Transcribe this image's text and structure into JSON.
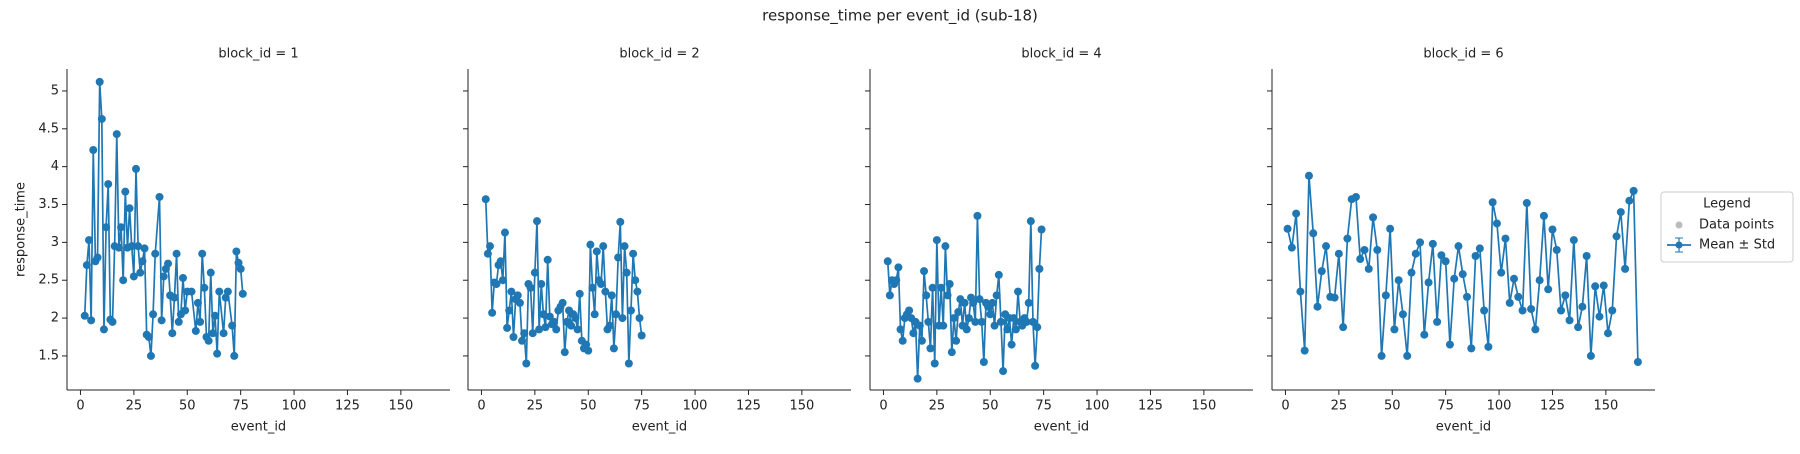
{
  "title": "response_time per event_id (sub-18)",
  "legend": {
    "title": "Legend",
    "entries": [
      "Data points",
      "Mean ± Std"
    ],
    "colors": [
      "#bbbbbb",
      "#1f77b4"
    ]
  },
  "chart_data": [
    {
      "type": "line",
      "title": "block_id = 1",
      "xlabel": "event_id",
      "ylabel": "response_time",
      "xlim": [
        -6.3,
        173
      ],
      "ylim": [
        1.05,
        5.29
      ],
      "xticks": [
        0,
        25,
        50,
        75,
        100,
        125,
        150
      ],
      "yticks": [
        1.5,
        2.0,
        2.5,
        3.0,
        3.5,
        4.0,
        4.5,
        5.0
      ],
      "series": [
        {
          "color": "#1f77b4",
          "x": [
            2,
            3,
            4,
            5,
            6,
            7,
            8,
            9,
            10,
            11,
            12,
            13,
            14,
            15,
            16,
            17,
            18,
            19,
            20,
            21,
            22,
            23,
            24,
            25,
            26,
            27,
            28,
            29,
            30,
            31,
            32,
            33,
            34,
            35,
            37,
            38,
            39,
            40,
            41,
            42,
            43,
            44,
            45,
            46,
            47,
            48,
            49,
            50,
            52,
            54,
            55,
            56,
            57,
            58,
            59,
            60,
            61,
            62,
            63,
            64,
            65,
            67,
            68,
            69,
            71,
            72,
            73,
            74,
            75,
            76
          ],
          "values": [
            2.03,
            2.7,
            3.03,
            1.97,
            4.22,
            2.75,
            2.8,
            5.12,
            4.63,
            1.85,
            3.2,
            3.77,
            1.98,
            1.95,
            2.95,
            4.43,
            2.93,
            3.2,
            2.5,
            3.67,
            2.93,
            3.45,
            2.95,
            2.55,
            3.97,
            2.95,
            2.6,
            2.75,
            2.92,
            1.78,
            1.75,
            1.5,
            2.05,
            2.85,
            3.6,
            1.97,
            2.55,
            2.65,
            2.72,
            2.3,
            1.8,
            2.27,
            2.85,
            1.95,
            2.05,
            2.53,
            2.1,
            2.35,
            2.35,
            1.83,
            2.2,
            1.95,
            2.85,
            2.4,
            1.75,
            1.7,
            2.6,
            1.8,
            2.03,
            1.53,
            2.35,
            1.8,
            2.27,
            2.35,
            1.9,
            1.5,
            2.88,
            2.73,
            2.65,
            2.32
          ]
        }
      ]
    },
    {
      "type": "line",
      "title": "block_id = 2",
      "xlabel": "event_id",
      "xlim": [
        -6.3,
        173
      ],
      "ylim": [
        1.05,
        5.29
      ],
      "xticks": [
        0,
        25,
        50,
        75,
        100,
        125,
        150
      ],
      "series": [
        {
          "color": "#1f77b4",
          "x": [
            2,
            3,
            4,
            5,
            6,
            7,
            8,
            9,
            10,
            11,
            12,
            13,
            14,
            15,
            16,
            17,
            18,
            19,
            20,
            21,
            22,
            23,
            24,
            25,
            26,
            27,
            28,
            29,
            30,
            31,
            32,
            33,
            34,
            35,
            36,
            37,
            38,
            39,
            40,
            41,
            42,
            43,
            44,
            45,
            46,
            47,
            48,
            49,
            50,
            51,
            52,
            53,
            54,
            55,
            56,
            57,
            58,
            59,
            60,
            61,
            62,
            63,
            64,
            65,
            66,
            67,
            68,
            69,
            70,
            71,
            72,
            73,
            74,
            75
          ],
          "values": [
            3.57,
            2.85,
            2.95,
            2.07,
            2.47,
            2.45,
            2.7,
            2.75,
            2.5,
            3.13,
            1.87,
            2.1,
            2.35,
            1.75,
            2.25,
            2.3,
            2.2,
            1.7,
            1.8,
            1.4,
            2.45,
            2.4,
            1.8,
            2.6,
            3.28,
            1.85,
            2.45,
            2.05,
            1.88,
            2.77,
            2.02,
            1.92,
            1.95,
            1.85,
            2.1,
            2.15,
            2.2,
            1.55,
            1.95,
            2.1,
            1.9,
            2.05,
            2.0,
            1.85,
            2.32,
            1.7,
            1.6,
            1.65,
            1.57,
            2.97,
            2.4,
            2.05,
            2.88,
            2.5,
            2.45,
            2.95,
            2.35,
            1.85,
            1.9,
            2.3,
            1.6,
            2.05,
            2.8,
            3.27,
            2.0,
            2.95,
            2.6,
            1.4,
            2.1,
            2.85,
            2.5,
            2.35,
            2.0,
            1.77
          ]
        }
      ]
    },
    {
      "type": "line",
      "title": "block_id = 4",
      "xlabel": "event_id",
      "xlim": [
        -6.3,
        173
      ],
      "ylim": [
        1.05,
        5.29
      ],
      "xticks": [
        0,
        25,
        50,
        75,
        100,
        125,
        150
      ],
      "series": [
        {
          "color": "#1f77b4",
          "x": [
            2,
            3,
            4,
            5,
            6,
            7,
            8,
            9,
            10,
            11,
            12,
            13,
            14,
            15,
            16,
            17,
            18,
            19,
            20,
            21,
            22,
            23,
            24,
            25,
            26,
            27,
            28,
            29,
            30,
            31,
            32,
            33,
            34,
            35,
            36,
            37,
            38,
            39,
            40,
            41,
            42,
            43,
            44,
            45,
            46,
            47,
            48,
            49,
            50,
            51,
            52,
            53,
            54,
            55,
            56,
            57,
            58,
            59,
            60,
            61,
            62,
            63,
            64,
            65,
            66,
            67,
            68,
            69,
            70,
            71,
            72,
            73,
            74
          ],
          "values": [
            2.75,
            2.3,
            2.5,
            2.45,
            2.5,
            2.67,
            1.85,
            1.7,
            2.0,
            2.05,
            2.1,
            2.0,
            1.8,
            1.95,
            1.2,
            1.9,
            1.7,
            2.62,
            2.3,
            1.95,
            1.6,
            2.4,
            1.4,
            3.03,
            1.9,
            2.4,
            1.9,
            2.95,
            2.3,
            2.45,
            1.55,
            2.0,
            1.7,
            2.08,
            2.25,
            1.9,
            2.2,
            1.85,
            2.0,
            2.27,
            2.2,
            1.95,
            3.35,
            2.25,
            1.95,
            1.42,
            2.2,
            2.15,
            2.05,
            2.2,
            1.9,
            2.3,
            2.57,
            1.95,
            1.3,
            2.05,
            1.85,
            2.0,
            1.65,
            2.0,
            1.85,
            2.35,
            1.95,
            1.9,
            2.0,
            1.95,
            2.2,
            3.28,
            1.95,
            1.37,
            1.88,
            2.65,
            3.17
          ]
        }
      ]
    },
    {
      "type": "line",
      "title": "block_id = 6",
      "xlabel": "event_id",
      "xlim": [
        -6.3,
        173
      ],
      "ylim": [
        1.05,
        5.29
      ],
      "xticks": [
        0,
        25,
        50,
        75,
        100,
        125,
        150
      ],
      "series": [
        {
          "color": "#1f77b4",
          "x": [
            1,
            3,
            5,
            7,
            9,
            11,
            13,
            15,
            17,
            19,
            21,
            23,
            25,
            27,
            29,
            31,
            33,
            35,
            37,
            39,
            41,
            43,
            45,
            47,
            49,
            51,
            53,
            55,
            57,
            59,
            61,
            63,
            65,
            67,
            69,
            71,
            73,
            75,
            77,
            79,
            81,
            83,
            85,
            87,
            89,
            91,
            93,
            95,
            97,
            99,
            101,
            103,
            105,
            107,
            109,
            111,
            113,
            115,
            117,
            119,
            121,
            123,
            125,
            127,
            129,
            131,
            133,
            135,
            137,
            139,
            141,
            143,
            145,
            147,
            149,
            151,
            153,
            155,
            157,
            159,
            161,
            163,
            165
          ],
          "values": [
            3.18,
            2.93,
            3.38,
            2.35,
            1.57,
            3.88,
            3.12,
            2.15,
            2.62,
            2.95,
            2.28,
            2.27,
            2.85,
            1.88,
            3.05,
            3.57,
            3.6,
            2.78,
            2.9,
            2.65,
            3.33,
            2.9,
            1.5,
            2.3,
            3.18,
            1.85,
            2.5,
            2.05,
            1.5,
            2.6,
            2.85,
            3.0,
            1.78,
            2.47,
            2.98,
            1.95,
            2.83,
            2.75,
            1.65,
            2.52,
            2.95,
            2.58,
            2.28,
            1.6,
            2.82,
            2.92,
            2.1,
            1.62,
            3.53,
            3.25,
            2.6,
            3.05,
            2.2,
            2.52,
            2.28,
            2.1,
            3.52,
            2.12,
            1.85,
            2.5,
            3.35,
            2.38,
            3.17,
            2.9,
            2.1,
            2.3,
            1.97,
            3.03,
            1.88,
            2.15,
            2.82,
            1.5,
            2.42,
            2.02,
            2.43,
            1.8,
            2.1,
            3.08,
            3.4,
            2.65,
            3.55,
            3.68,
            1.42
          ]
        }
      ]
    }
  ]
}
